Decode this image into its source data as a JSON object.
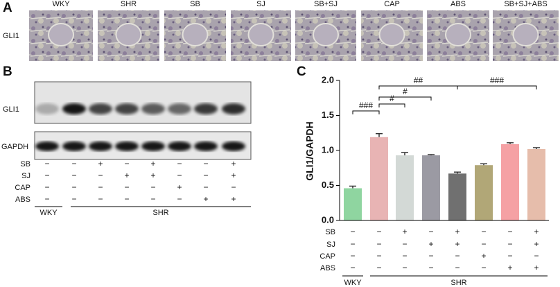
{
  "panel_a": {
    "label": "A",
    "row_label": "GLI1",
    "columns": [
      "WKY",
      "SHR",
      "SB",
      "SJ",
      "SB+SJ",
      "CAP",
      "ABS",
      "SB+SJ+ABS"
    ]
  },
  "panel_b": {
    "label": "B",
    "blots": [
      "GLI1",
      "GAPDH"
    ]
  },
  "treatments": {
    "rows": [
      {
        "name": "SB",
        "signs": [
          "−",
          "−",
          "+",
          "−",
          "+",
          "−",
          "−",
          "+"
        ]
      },
      {
        "name": "SJ",
        "signs": [
          "−",
          "−",
          "−",
          "+",
          "+",
          "−",
          "−",
          "+"
        ]
      },
      {
        "name": "CAP",
        "signs": [
          "−",
          "−",
          "−",
          "−",
          "−",
          "+",
          "−",
          "−"
        ]
      },
      {
        "name": "ABS",
        "signs": [
          "−",
          "−",
          "−",
          "−",
          "−",
          "−",
          "+",
          "+"
        ]
      }
    ],
    "groups": [
      "WKY",
      "SHR"
    ]
  },
  "chart_data": {
    "type": "bar",
    "panel_label": "C",
    "y_label": "GLI1/GAPDH",
    "categories": [
      "WKY",
      "SHR",
      "SB",
      "SJ",
      "SB+SJ",
      "CAP",
      "ABS",
      "SB+SJ+ABS"
    ],
    "values": [
      0.46,
      1.19,
      0.93,
      0.93,
      0.67,
      0.79,
      1.09,
      1.02
    ],
    "errors": [
      0.03,
      0.05,
      0.04,
      0.01,
      0.02,
      0.02,
      0.02,
      0.02
    ],
    "colors": [
      "#8fd5a0",
      "#e8b4b4",
      "#d3d9d6",
      "#9b9aa3",
      "#707070",
      "#b1a777",
      "#f5a1a4",
      "#e6bdab"
    ],
    "ylim": [
      0,
      2
    ],
    "yticks": [
      {
        "value": 0,
        "label": "0.0"
      },
      {
        "value": 0.5,
        "label": "0.5"
      },
      {
        "value": 1,
        "label": "1.0"
      },
      {
        "value": 1.5,
        "label": "1.5"
      },
      {
        "value": 2,
        "label": "2.0"
      }
    ],
    "annotations": [
      {
        "from": 0,
        "to": 1,
        "text": "###"
      },
      {
        "from": 1,
        "to": 2,
        "text": "#"
      },
      {
        "from": 1,
        "to": 3,
        "text": "#"
      },
      {
        "from": 1,
        "to": 4,
        "text": "##"
      },
      {
        "from": 4,
        "to": 7,
        "text": "###"
      }
    ]
  }
}
